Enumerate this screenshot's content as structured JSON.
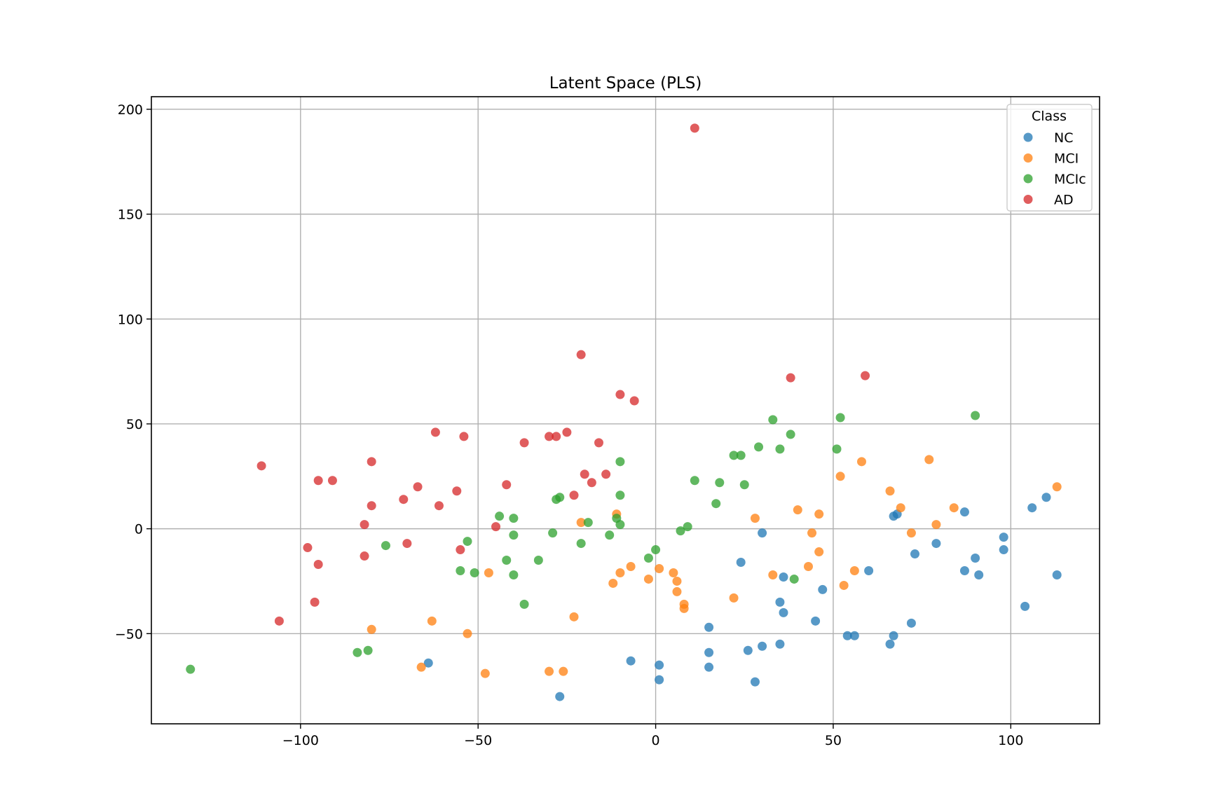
{
  "chart_data": {
    "type": "scatter",
    "title": "Latent Space (PLS)",
    "xlabel": "",
    "ylabel": "",
    "xlim": [
      -142,
      125
    ],
    "ylim": [
      -93,
      206
    ],
    "xticks": [
      -100,
      -50,
      0,
      50,
      100
    ],
    "yticks": [
      -50,
      0,
      50,
      100,
      150,
      200
    ],
    "xtick_labels": [
      "−100",
      "−50",
      "0",
      "50",
      "100"
    ],
    "ytick_labels": [
      "−50",
      "0",
      "50",
      "100",
      "150",
      "200"
    ],
    "grid": true,
    "legend": {
      "title": "Class",
      "placement": "top-right"
    },
    "series": [
      {
        "name": "NC",
        "color": "#1f77b4",
        "points": [
          [
            -64,
            -64
          ],
          [
            -27,
            -80
          ],
          [
            -7,
            -63
          ],
          [
            1,
            -65
          ],
          [
            1,
            -72
          ],
          [
            15,
            -66
          ],
          [
            15,
            -59
          ],
          [
            15,
            -47
          ],
          [
            24,
            -16
          ],
          [
            26,
            -58
          ],
          [
            28,
            -73
          ],
          [
            30,
            -2
          ],
          [
            30,
            -56
          ],
          [
            35,
            -55
          ],
          [
            35,
            -35
          ],
          [
            36,
            -23
          ],
          [
            36,
            -40
          ],
          [
            45,
            -44
          ],
          [
            47,
            -29
          ],
          [
            54,
            -51
          ],
          [
            56,
            -51
          ],
          [
            60,
            -20
          ],
          [
            66,
            -55
          ],
          [
            67,
            -51
          ],
          [
            67,
            6
          ],
          [
            68,
            7
          ],
          [
            72,
            -45
          ],
          [
            73,
            -12
          ],
          [
            79,
            -7
          ],
          [
            87,
            -20
          ],
          [
            87,
            8
          ],
          [
            90,
            -14
          ],
          [
            91,
            -22
          ],
          [
            98,
            -10
          ],
          [
            98,
            -4
          ],
          [
            104,
            -37
          ],
          [
            106,
            10
          ],
          [
            110,
            15
          ],
          [
            113,
            -22
          ]
        ]
      },
      {
        "name": "MCI",
        "color": "#ff7f0e",
        "points": [
          [
            -80,
            -48
          ],
          [
            -66,
            -66
          ],
          [
            -63,
            -44
          ],
          [
            -53,
            -50
          ],
          [
            -48,
            -69
          ],
          [
            -47,
            -21
          ],
          [
            -30,
            -68
          ],
          [
            -26,
            -68
          ],
          [
            -23,
            -42
          ],
          [
            -21,
            3
          ],
          [
            -12,
            -26
          ],
          [
            -11,
            7
          ],
          [
            -10,
            -21
          ],
          [
            -7,
            -18
          ],
          [
            -2,
            -24
          ],
          [
            1,
            -19
          ],
          [
            5,
            -21
          ],
          [
            6,
            -25
          ],
          [
            6,
            -30
          ],
          [
            8,
            -36
          ],
          [
            8,
            -38
          ],
          [
            22,
            -33
          ],
          [
            28,
            5
          ],
          [
            33,
            -22
          ],
          [
            40,
            9
          ],
          [
            43,
            -18
          ],
          [
            44,
            -2
          ],
          [
            46,
            7
          ],
          [
            46,
            -11
          ],
          [
            52,
            25
          ],
          [
            53,
            -27
          ],
          [
            56,
            -20
          ],
          [
            58,
            32
          ],
          [
            66,
            18
          ],
          [
            69,
            10
          ],
          [
            72,
            -2
          ],
          [
            77,
            33
          ],
          [
            79,
            2
          ],
          [
            84,
            10
          ],
          [
            113,
            20
          ]
        ]
      },
      {
        "name": "MCIc",
        "color": "#2ca02c",
        "points": [
          [
            -131,
            -67
          ],
          [
            -84,
            -59
          ],
          [
            -81,
            -58
          ],
          [
            -76,
            -8
          ],
          [
            -55,
            -20
          ],
          [
            -53,
            -6
          ],
          [
            -51,
            -21
          ],
          [
            -44,
            6
          ],
          [
            -42,
            -15
          ],
          [
            -40,
            5
          ],
          [
            -40,
            -3
          ],
          [
            -40,
            -22
          ],
          [
            -37,
            -36
          ],
          [
            -33,
            -15
          ],
          [
            -29,
            -2
          ],
          [
            -28,
            14
          ],
          [
            -27,
            15
          ],
          [
            -21,
            -7
          ],
          [
            -19,
            3
          ],
          [
            -13,
            -3
          ],
          [
            -11,
            5
          ],
          [
            -10,
            2
          ],
          [
            -10,
            16
          ],
          [
            -10,
            32
          ],
          [
            -2,
            -14
          ],
          [
            0,
            -10
          ],
          [
            7,
            -1
          ],
          [
            9,
            1
          ],
          [
            11,
            23
          ],
          [
            17,
            12
          ],
          [
            18,
            22
          ],
          [
            22,
            35
          ],
          [
            24,
            35
          ],
          [
            25,
            21
          ],
          [
            29,
            39
          ],
          [
            33,
            52
          ],
          [
            35,
            38
          ],
          [
            38,
            45
          ],
          [
            39,
            -24
          ],
          [
            51,
            38
          ],
          [
            52,
            53
          ],
          [
            90,
            54
          ]
        ]
      },
      {
        "name": "AD",
        "color": "#d62728",
        "points": [
          [
            -106,
            -44
          ],
          [
            -111,
            30
          ],
          [
            -98,
            -9
          ],
          [
            -96,
            -35
          ],
          [
            -95,
            -17
          ],
          [
            -95,
            23
          ],
          [
            -91,
            23
          ],
          [
            -82,
            2
          ],
          [
            -82,
            -13
          ],
          [
            -80,
            11
          ],
          [
            -80,
            32
          ],
          [
            -71,
            14
          ],
          [
            -70,
            -7
          ],
          [
            -67,
            20
          ],
          [
            -62,
            46
          ],
          [
            -61,
            11
          ],
          [
            -56,
            18
          ],
          [
            -55,
            -10
          ],
          [
            -54,
            44
          ],
          [
            -45,
            1
          ],
          [
            -42,
            21
          ],
          [
            -37,
            41
          ],
          [
            -30,
            44
          ],
          [
            -28,
            44
          ],
          [
            -25,
            46
          ],
          [
            -23,
            16
          ],
          [
            -21,
            83
          ],
          [
            -20,
            26
          ],
          [
            -18,
            22
          ],
          [
            -16,
            41
          ],
          [
            -14,
            26
          ],
          [
            -10,
            64
          ],
          [
            -6,
            61
          ],
          [
            11,
            191
          ],
          [
            38,
            72
          ],
          [
            59,
            73
          ]
        ]
      }
    ]
  }
}
